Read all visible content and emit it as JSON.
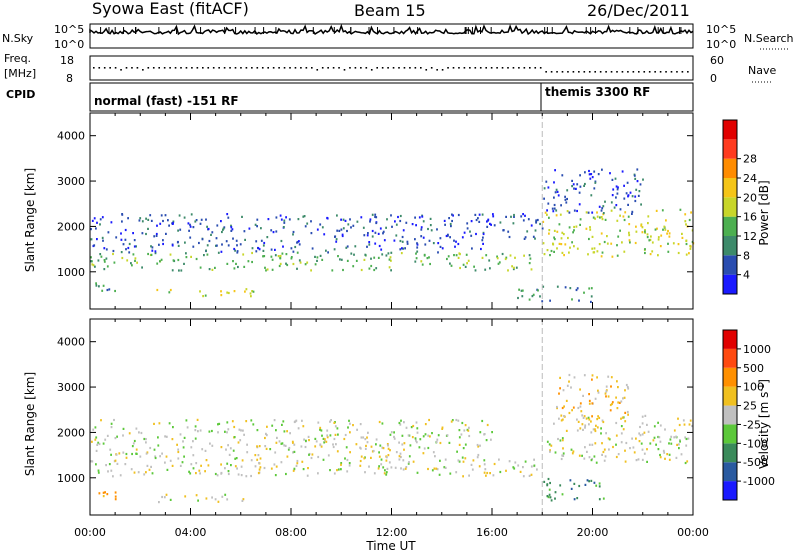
{
  "header": {
    "radar": "Syowa East (fitACF)",
    "beam": "Beam 15",
    "date": "26/Dec/2011"
  },
  "side_labels": {
    "nsky": "N.Sky",
    "freq_line1": "Freq.",
    "freq_line2": "[MHz]",
    "cpid": "CPID",
    "nsearch": "N.Search",
    "nave": "Nave"
  },
  "noise_panel": {
    "left_ticks": [
      "10^5",
      "10^0"
    ],
    "right_ticks": [
      "10^5",
      "10^0"
    ]
  },
  "freq_panel": {
    "left_ticks": [
      "18",
      "8"
    ],
    "right_ticks": [
      "60",
      "0"
    ],
    "freq_mhz_approx": 12.5,
    "nave_approx": 22
  },
  "cpid_panel": {
    "modes": [
      {
        "label": "normal (fast) -151 RF",
        "start_hour": 0
      },
      {
        "label": "themis 3300 RF",
        "start_hour": 18
      }
    ]
  },
  "chart_data": [
    {
      "type": "heatmap",
      "name": "power",
      "ylabel": "Slant Range [km]",
      "xlabel": "Time UT",
      "xlim": [
        0,
        24
      ],
      "ylim": [
        180,
        4500
      ],
      "y_ticks": [
        1000,
        2000,
        3000,
        4000
      ],
      "x_tick_labels": [
        "00:00",
        "04:00",
        "08:00",
        "12:00",
        "16:00",
        "20:00",
        "00:00"
      ],
      "colorbar": {
        "label": "Power [dB]",
        "ticks": [
          "4",
          "8",
          "12",
          "16",
          "20",
          "24",
          "28"
        ],
        "colors": [
          "#1a1aff",
          "#2a4db0",
          "#3d8a6a",
          "#4caf50",
          "#c8d62a",
          "#f5c518",
          "#ff8c00",
          "#ff3b1f",
          "#e00000"
        ]
      },
      "mode_switch_hour": 18,
      "regions": [
        {
          "t0": 0.0,
          "t1": 17.9,
          "r0": 1050,
          "r1": 1450,
          "level": 3
        },
        {
          "t0": 0.0,
          "t1": 16.0,
          "r0": 1450,
          "r1": 2300,
          "level": 1
        },
        {
          "t0": 0.0,
          "t1": 1.2,
          "r0": 550,
          "r1": 800,
          "level": 2
        },
        {
          "t0": 2.5,
          "t1": 6.5,
          "r0": 480,
          "r1": 650,
          "level": 4
        },
        {
          "t0": 16.0,
          "t1": 18.0,
          "r0": 1700,
          "r1": 2300,
          "level": 1
        },
        {
          "t0": 18.0,
          "t1": 24.0,
          "r0": 1350,
          "r1": 2400,
          "level": 4
        },
        {
          "t0": 18.0,
          "t1": 22.0,
          "r0": 2300,
          "r1": 3300,
          "level": 1
        },
        {
          "t0": 17.0,
          "t1": 20.0,
          "r0": 350,
          "r1": 700,
          "level": 2
        }
      ]
    },
    {
      "type": "heatmap",
      "name": "velocity",
      "ylabel": "Slant Range [km]",
      "xlabel": "Time UT",
      "xlim": [
        0,
        24
      ],
      "ylim": [
        180,
        4500
      ],
      "y_ticks": [
        1000,
        2000,
        3000,
        4000
      ],
      "x_tick_labels": [
        "00:00",
        "04:00",
        "08:00",
        "12:00",
        "16:00",
        "20:00",
        "00:00"
      ],
      "colorbar": {
        "label": "Velocity [m s^-1]",
        "ticks": [
          "1000",
          "500",
          "100",
          "25",
          "-25",
          "-100",
          "-500",
          "-1000"
        ],
        "colors": [
          "#1a1aff",
          "#2a5aa0",
          "#3a8a5a",
          "#5cc83a",
          "#c0c0c0",
          "#f0c020",
          "#ff9000",
          "#ff4a10",
          "#e00000"
        ]
      },
      "mode_switch_hour": 18,
      "regions": [
        {
          "t0": 0.0,
          "t1": 17.9,
          "r0": 1050,
          "r1": 1450,
          "level": 4
        },
        {
          "t0": 0.0,
          "t1": 16.0,
          "r0": 1450,
          "r1": 2300,
          "level": 4
        },
        {
          "t0": 0.0,
          "t1": 1.2,
          "r0": 550,
          "r1": 800,
          "level": 6
        },
        {
          "t0": 2.5,
          "t1": 6.5,
          "r0": 480,
          "r1": 650,
          "level": 4
        },
        {
          "t0": 18.0,
          "t1": 24.0,
          "r0": 1350,
          "r1": 2400,
          "level": 4
        },
        {
          "t0": 18.5,
          "t1": 21.5,
          "r0": 2300,
          "r1": 3300,
          "level": 5
        },
        {
          "t0": 18.0,
          "t1": 20.5,
          "r0": 500,
          "r1": 1000,
          "level": 2
        }
      ]
    }
  ]
}
